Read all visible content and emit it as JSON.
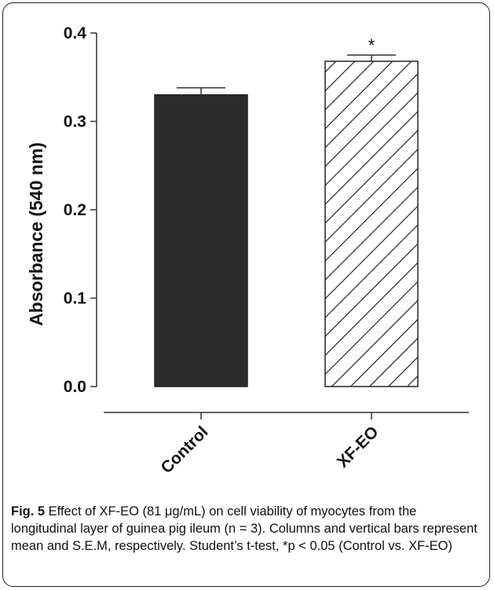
{
  "chart_data": {
    "type": "bar",
    "categories": [
      "Control",
      "XF-EO"
    ],
    "values": [
      0.33,
      0.368
    ],
    "errors": [
      0.008,
      0.007
    ],
    "ylabel": "Absorbance (540 nm)",
    "ylim": [
      0,
      0.4
    ],
    "yticks": [
      "0.0",
      "0.1",
      "0.2",
      "0.3",
      "0.4"
    ],
    "significance": [
      {
        "category": "XF-EO",
        "label": "*"
      }
    ],
    "fills": {
      "Control": "#2b2b2b",
      "XF-EO": "hatched"
    },
    "grid": false
  },
  "caption": {
    "label": "Fig. 5",
    "text": " Effect of XF-EO (81 μg/mL) on cell viability of myocytes from the longitudinal layer of guinea pig ileum (n = 3). Columns and vertical bars represent mean and S.E.M, respectively. Student’s t-test, *p < 0.05 (Control vs. XF-EO)"
  }
}
